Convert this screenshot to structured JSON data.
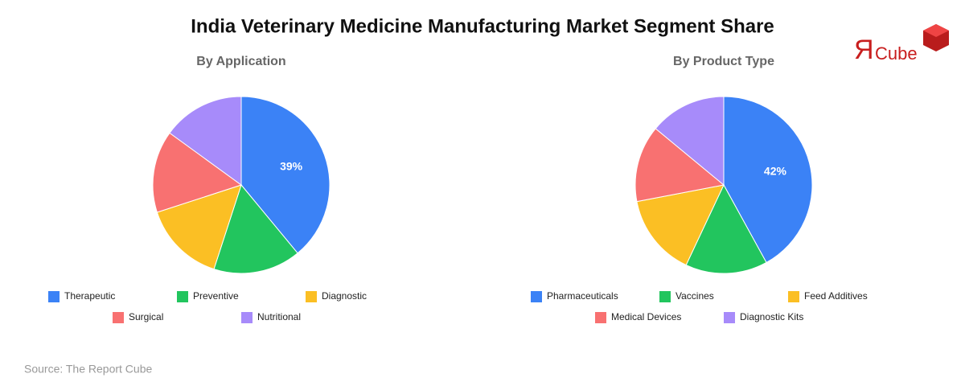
{
  "title": "India Veterinary Medicine Manufacturing Market Segment Share",
  "logo": {
    "mark": "Я",
    "text": "Cube"
  },
  "source": "Source: The Report Cube",
  "chart_data": [
    {
      "type": "pie",
      "subtitle": "By Application",
      "categories": [
        "Therapeutic",
        "Preventive",
        "Diagnostic",
        "Surgical",
        "Nutritional"
      ],
      "values": [
        39,
        16,
        15,
        15,
        15
      ],
      "value_labels": [
        "39%",
        null,
        null,
        null,
        null
      ],
      "colors": [
        "#3b82f6",
        "#22c55e",
        "#fbbf24",
        "#f87171",
        "#a78bfa"
      ]
    },
    {
      "type": "pie",
      "subtitle": "By Product Type",
      "categories": [
        "Pharmaceuticals",
        "Vaccines",
        "Feed Additives",
        "Medical Devices",
        "Diagnostic Kits"
      ],
      "values": [
        42,
        15,
        15,
        14,
        14
      ],
      "value_labels": [
        "42%",
        null,
        null,
        null,
        null
      ],
      "colors": [
        "#3b82f6",
        "#22c55e",
        "#fbbf24",
        "#f87171",
        "#a78bfa"
      ]
    }
  ]
}
